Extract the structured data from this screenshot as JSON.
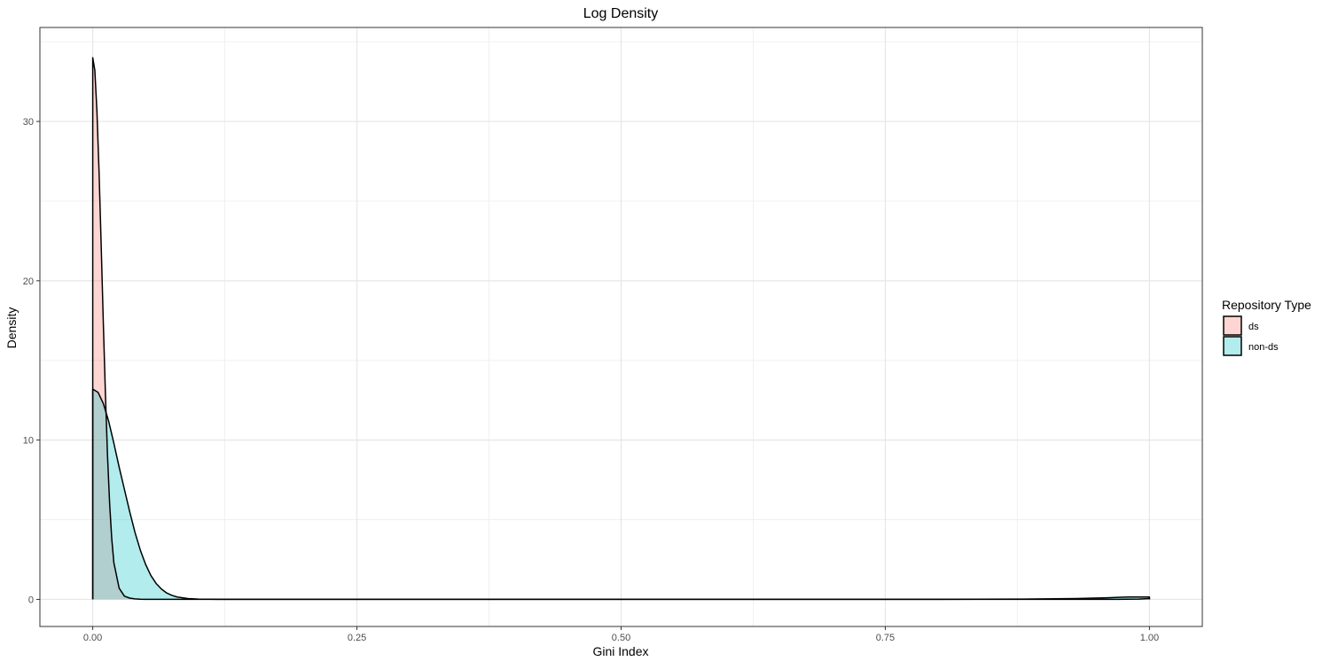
{
  "chart_data": {
    "type": "area",
    "title": "Log Density",
    "xlabel": "Gini Index",
    "ylabel": "Density",
    "xlim": [
      -0.05,
      1.05
    ],
    "ylim": [
      -1.7,
      35.9
    ],
    "x_ticks": [
      0,
      0.25,
      0.5,
      0.75,
      1
    ],
    "x_tick_labels": [
      "0.00",
      "0.25",
      "0.50",
      "0.75",
      "1.00"
    ],
    "y_ticks": [
      0,
      10,
      20,
      30
    ],
    "y_tick_labels": [
      "0",
      "10",
      "20",
      "30"
    ],
    "grid": true,
    "legend": {
      "title": "Repository Type",
      "position": "right"
    },
    "series": [
      {
        "name": "ds",
        "fill": "#F8766D",
        "x": [
          0,
          0.002,
          0.004,
          0.006,
          0.008,
          0.01,
          0.012,
          0.014,
          0.016,
          0.018,
          0.02,
          0.025,
          0.03,
          0.035,
          0.04,
          0.045,
          0.05,
          0.06,
          0.07,
          0.1,
          0.2,
          0.4,
          0.6,
          0.8,
          0.9,
          0.95,
          0.97,
          0.99,
          1.0
        ],
        "values": [
          34.0,
          33.2,
          30.6,
          26.8,
          22.2,
          17.4,
          12.9,
          9.0,
          6.0,
          3.8,
          2.3,
          0.7,
          0.2,
          0.08,
          0.03,
          0.01,
          0.0,
          0.0,
          0.0,
          0.0,
          0.0,
          0.0,
          0.0,
          0.0,
          0.0,
          0.0,
          0.0,
          0.02,
          0.05
        ]
      },
      {
        "name": "non-ds",
        "fill": "#00BFC4",
        "x": [
          0,
          0.005,
          0.01,
          0.015,
          0.02,
          0.025,
          0.03,
          0.035,
          0.04,
          0.045,
          0.05,
          0.055,
          0.06,
          0.065,
          0.07,
          0.075,
          0.08,
          0.09,
          0.1,
          0.12,
          0.15,
          0.2,
          0.4,
          0.6,
          0.8,
          0.88,
          0.93,
          0.96,
          0.98,
          0.99,
          1.0
        ],
        "values": [
          13.2,
          13.0,
          12.3,
          11.2,
          9.8,
          8.3,
          6.9,
          5.5,
          4.2,
          3.1,
          2.2,
          1.5,
          1.0,
          0.65,
          0.4,
          0.25,
          0.15,
          0.05,
          0.02,
          0.0,
          0.0,
          0.0,
          0.0,
          0.0,
          0.0,
          0.02,
          0.05,
          0.1,
          0.15,
          0.15,
          0.15
        ]
      }
    ]
  }
}
